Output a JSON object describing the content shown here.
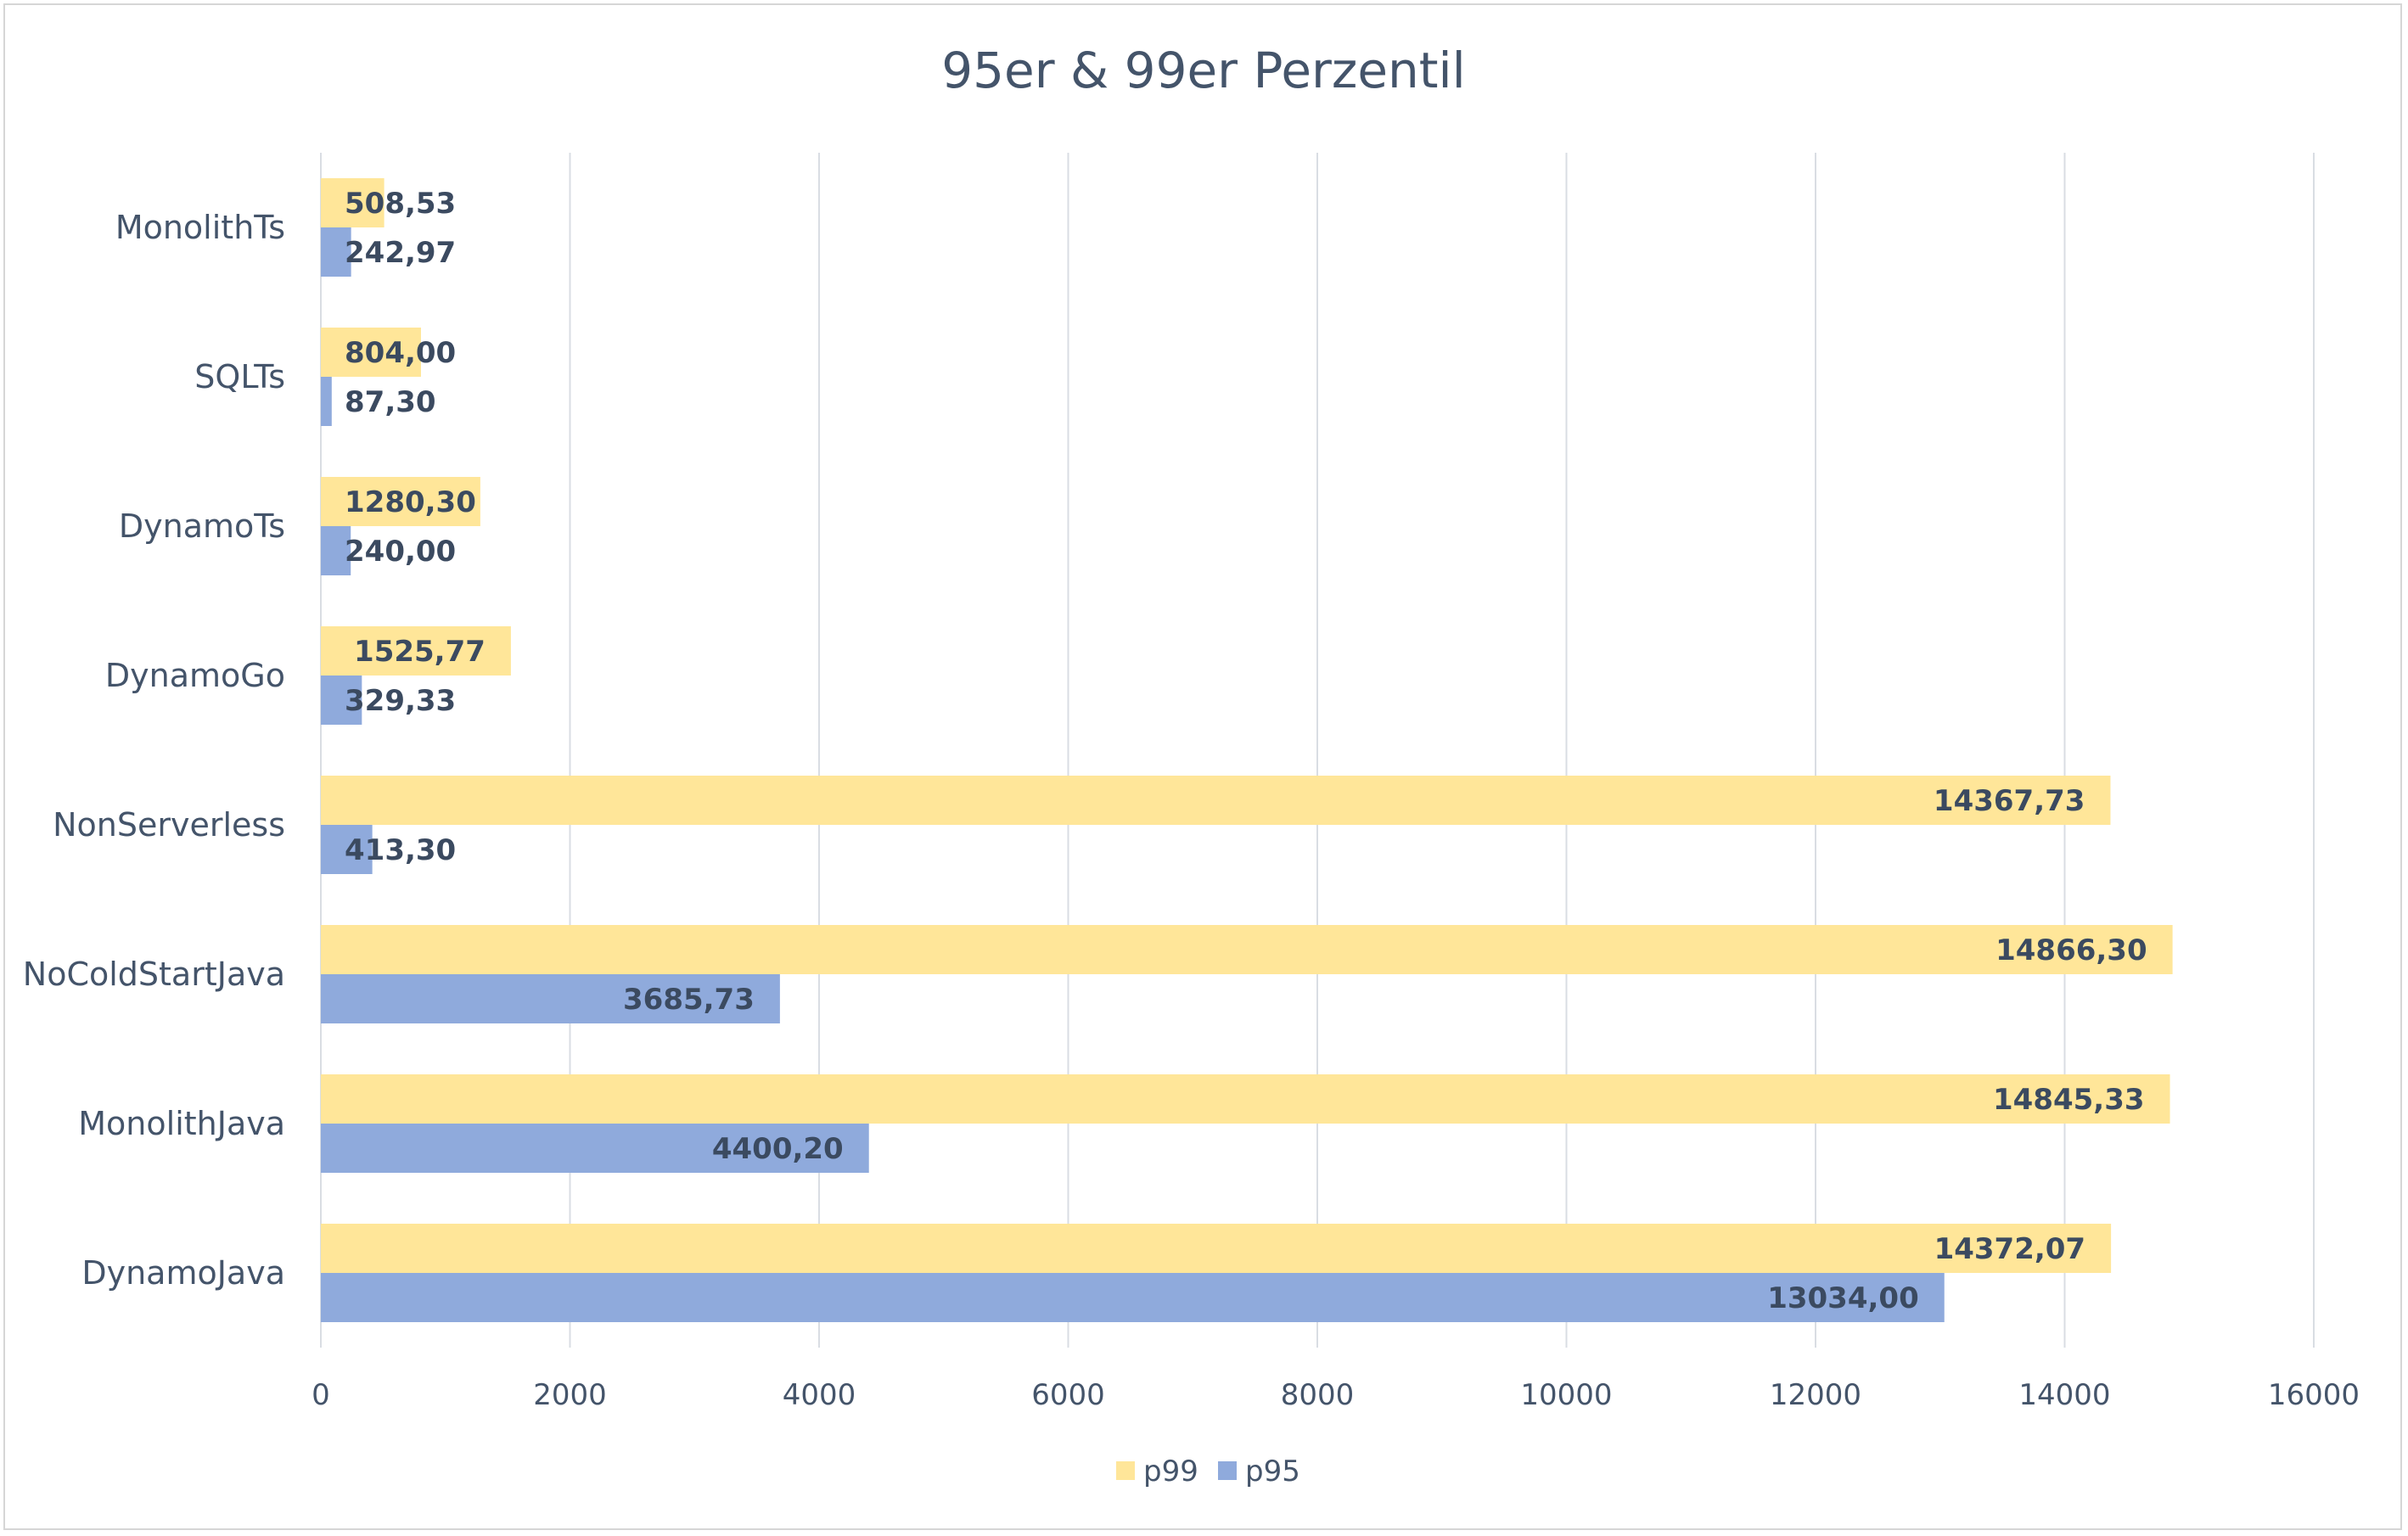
{
  "chart_data": {
    "type": "bar",
    "orientation": "horizontal",
    "title": "95er & 99er Perzentil",
    "xlabel": "",
    "ylabel": "",
    "xlim": [
      0,
      16000
    ],
    "x_ticks": [
      0,
      2000,
      4000,
      6000,
      8000,
      10000,
      12000,
      14000,
      16000
    ],
    "grid": "vertical",
    "legend_position": "bottom",
    "categories": [
      "MonolithTs",
      "SQLTs",
      "DynamoTs",
      "DynamoGo",
      "NonServerless",
      "NoColdStartJava",
      "MonolithJava",
      "DynamoJava"
    ],
    "series": [
      {
        "name": "p99",
        "color": "#ffe699",
        "values": [
          508.53,
          804.0,
          1280.3,
          1525.77,
          14367.73,
          14866.3,
          14845.33,
          14372.07
        ],
        "labels": [
          "508,53",
          "804,00",
          "1280,30",
          "1525,77",
          "14367,73",
          "14866,30",
          "14845,33",
          "14372,07"
        ]
      },
      {
        "name": "p95",
        "color": "#8faadc",
        "values": [
          242.97,
          87.3,
          240.0,
          329.33,
          413.3,
          3685.73,
          4400.2,
          13034.0
        ],
        "labels": [
          "242,97",
          "87,30",
          "240,00",
          "329,33",
          "413,30",
          "3685,73",
          "4400,20",
          "13034,00"
        ]
      }
    ]
  }
}
